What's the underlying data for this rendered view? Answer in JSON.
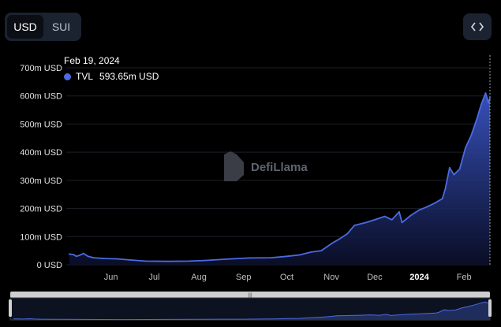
{
  "currency_toggle": {
    "options": [
      "USD",
      "SUI"
    ],
    "selected": "USD"
  },
  "embed_icon": "code-brackets-icon",
  "tooltip": {
    "date": "Feb 19, 2024",
    "series": "TVL",
    "value": "593.65m USD"
  },
  "watermark": "DefiLlama",
  "colors": {
    "line": "#4c6ae3",
    "background": "#000000",
    "fill_top": "#3954c4"
  },
  "chart_data": {
    "type": "area",
    "title": "",
    "xlabel": "",
    "ylabel": "",
    "ylim": [
      0,
      700
    ],
    "y_unit": "m USD",
    "y_ticks": [
      "0 USD",
      "100m USD",
      "200m USD",
      "300m USD",
      "400m USD",
      "500m USD",
      "600m USD",
      "700m USD"
    ],
    "x_ticks": [
      {
        "label": "Jun",
        "date": "2023-06-01",
        "bold": false
      },
      {
        "label": "Jul",
        "date": "2023-07-01",
        "bold": false
      },
      {
        "label": "Aug",
        "date": "2023-08-01",
        "bold": false
      },
      {
        "label": "Sep",
        "date": "2023-09-01",
        "bold": false
      },
      {
        "label": "Oct",
        "date": "2023-10-01",
        "bold": false
      },
      {
        "label": "Nov",
        "date": "2023-11-01",
        "bold": false
      },
      {
        "label": "Dec",
        "date": "2023-12-01",
        "bold": false
      },
      {
        "label": "2024",
        "date": "2024-01-01",
        "bold": true
      },
      {
        "label": "Feb",
        "date": "2024-02-01",
        "bold": false
      }
    ],
    "series": [
      {
        "name": "TVL",
        "points": [
          [
            "2023-05-03",
            38
          ],
          [
            "2023-05-06",
            36
          ],
          [
            "2023-05-08",
            30
          ],
          [
            "2023-05-10",
            33
          ],
          [
            "2023-05-13",
            40
          ],
          [
            "2023-05-16",
            30
          ],
          [
            "2023-05-20",
            25
          ],
          [
            "2023-05-28",
            22
          ],
          [
            "2023-06-05",
            21
          ],
          [
            "2023-06-14",
            17
          ],
          [
            "2023-06-25",
            13
          ],
          [
            "2023-07-10",
            12
          ],
          [
            "2023-07-25",
            13
          ],
          [
            "2023-08-05",
            15
          ],
          [
            "2023-08-20",
            20
          ],
          [
            "2023-09-05",
            24
          ],
          [
            "2023-09-20",
            25
          ],
          [
            "2023-10-01",
            30
          ],
          [
            "2023-10-10",
            35
          ],
          [
            "2023-10-18",
            45
          ],
          [
            "2023-10-25",
            50
          ],
          [
            "2023-11-01",
            75
          ],
          [
            "2023-11-06",
            90
          ],
          [
            "2023-11-12",
            110
          ],
          [
            "2023-11-17",
            140
          ],
          [
            "2023-11-25",
            150
          ],
          [
            "2023-12-01",
            160
          ],
          [
            "2023-12-08",
            172
          ],
          [
            "2023-12-13",
            160
          ],
          [
            "2023-12-18",
            188
          ],
          [
            "2023-12-20",
            150
          ],
          [
            "2023-12-26",
            175
          ],
          [
            "2024-01-01",
            195
          ],
          [
            "2024-01-06",
            205
          ],
          [
            "2024-01-12",
            220
          ],
          [
            "2024-01-17",
            235
          ],
          [
            "2024-01-19",
            270
          ],
          [
            "2024-01-22",
            345
          ],
          [
            "2024-01-25",
            320
          ],
          [
            "2024-01-29",
            340
          ],
          [
            "2024-02-02",
            415
          ],
          [
            "2024-02-06",
            460
          ],
          [
            "2024-02-10",
            520
          ],
          [
            "2024-02-13",
            570
          ],
          [
            "2024-02-16",
            610
          ],
          [
            "2024-02-18",
            575
          ],
          [
            "2024-02-19",
            593.65
          ]
        ]
      }
    ],
    "range_selector": true
  }
}
